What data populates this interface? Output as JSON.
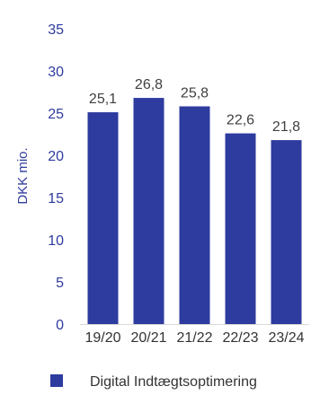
{
  "chart_data": {
    "type": "bar",
    "categories": [
      "19/20",
      "20/21",
      "21/22",
      "22/23",
      "23/24"
    ],
    "series": [
      {
        "name": "Digital Indtægtsoptimering",
        "values": [
          25.1,
          26.8,
          25.8,
          22.6,
          21.8
        ],
        "labels": [
          "25,1",
          "26,8",
          "25,8",
          "22,6",
          "21,8"
        ],
        "color": "#2E3B9F"
      }
    ],
    "ylabel": "DKK mio.",
    "ylim": [
      0,
      35
    ],
    "yticks": [
      0,
      5,
      10,
      15,
      20,
      25,
      30,
      35
    ],
    "grid": false,
    "legend_position": "bottom",
    "colors": {
      "axis_text": "#2E3B9F",
      "data_label": "#404040",
      "category_label": "#333333",
      "baseline": "#d9d9d9"
    }
  }
}
